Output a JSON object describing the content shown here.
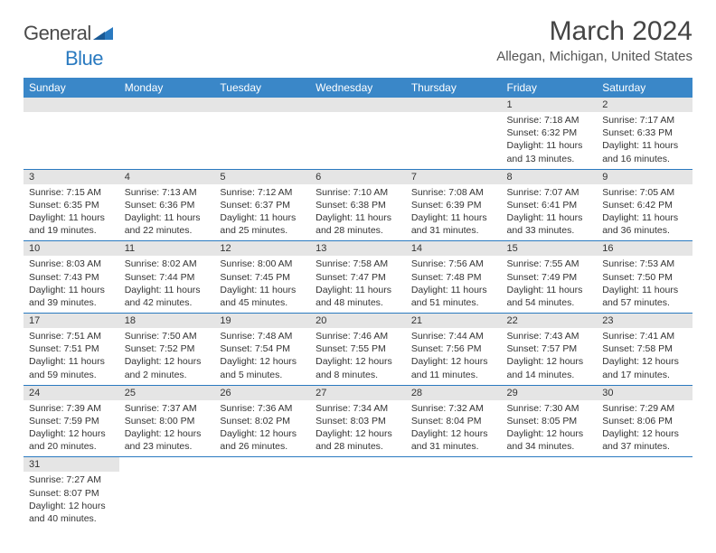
{
  "logo": {
    "general": "General",
    "blue": "Blue"
  },
  "title": "March 2024",
  "location": "Allegan, Michigan, United States",
  "colors": {
    "header_bg": "#3a87c8",
    "row_divider": "#2a7ac0",
    "daynum_bg": "#e5e5e5",
    "text": "#333333",
    "title_text": "#444444"
  },
  "daynames": [
    "Sunday",
    "Monday",
    "Tuesday",
    "Wednesday",
    "Thursday",
    "Friday",
    "Saturday"
  ],
  "weeks": [
    [
      {
        "n": "",
        "lines": [
          "",
          "",
          "",
          ""
        ]
      },
      {
        "n": "",
        "lines": [
          "",
          "",
          "",
          ""
        ]
      },
      {
        "n": "",
        "lines": [
          "",
          "",
          "",
          ""
        ]
      },
      {
        "n": "",
        "lines": [
          "",
          "",
          "",
          ""
        ]
      },
      {
        "n": "",
        "lines": [
          "",
          "",
          "",
          ""
        ]
      },
      {
        "n": "1",
        "lines": [
          "Sunrise: 7:18 AM",
          "Sunset: 6:32 PM",
          "Daylight: 11 hours",
          "and 13 minutes."
        ]
      },
      {
        "n": "2",
        "lines": [
          "Sunrise: 7:17 AM",
          "Sunset: 6:33 PM",
          "Daylight: 11 hours",
          "and 16 minutes."
        ]
      }
    ],
    [
      {
        "n": "3",
        "lines": [
          "Sunrise: 7:15 AM",
          "Sunset: 6:35 PM",
          "Daylight: 11 hours",
          "and 19 minutes."
        ]
      },
      {
        "n": "4",
        "lines": [
          "Sunrise: 7:13 AM",
          "Sunset: 6:36 PM",
          "Daylight: 11 hours",
          "and 22 minutes."
        ]
      },
      {
        "n": "5",
        "lines": [
          "Sunrise: 7:12 AM",
          "Sunset: 6:37 PM",
          "Daylight: 11 hours",
          "and 25 minutes."
        ]
      },
      {
        "n": "6",
        "lines": [
          "Sunrise: 7:10 AM",
          "Sunset: 6:38 PM",
          "Daylight: 11 hours",
          "and 28 minutes."
        ]
      },
      {
        "n": "7",
        "lines": [
          "Sunrise: 7:08 AM",
          "Sunset: 6:39 PM",
          "Daylight: 11 hours",
          "and 31 minutes."
        ]
      },
      {
        "n": "8",
        "lines": [
          "Sunrise: 7:07 AM",
          "Sunset: 6:41 PM",
          "Daylight: 11 hours",
          "and 33 minutes."
        ]
      },
      {
        "n": "9",
        "lines": [
          "Sunrise: 7:05 AM",
          "Sunset: 6:42 PM",
          "Daylight: 11 hours",
          "and 36 minutes."
        ]
      }
    ],
    [
      {
        "n": "10",
        "lines": [
          "Sunrise: 8:03 AM",
          "Sunset: 7:43 PM",
          "Daylight: 11 hours",
          "and 39 minutes."
        ]
      },
      {
        "n": "11",
        "lines": [
          "Sunrise: 8:02 AM",
          "Sunset: 7:44 PM",
          "Daylight: 11 hours",
          "and 42 minutes."
        ]
      },
      {
        "n": "12",
        "lines": [
          "Sunrise: 8:00 AM",
          "Sunset: 7:45 PM",
          "Daylight: 11 hours",
          "and 45 minutes."
        ]
      },
      {
        "n": "13",
        "lines": [
          "Sunrise: 7:58 AM",
          "Sunset: 7:47 PM",
          "Daylight: 11 hours",
          "and 48 minutes."
        ]
      },
      {
        "n": "14",
        "lines": [
          "Sunrise: 7:56 AM",
          "Sunset: 7:48 PM",
          "Daylight: 11 hours",
          "and 51 minutes."
        ]
      },
      {
        "n": "15",
        "lines": [
          "Sunrise: 7:55 AM",
          "Sunset: 7:49 PM",
          "Daylight: 11 hours",
          "and 54 minutes."
        ]
      },
      {
        "n": "16",
        "lines": [
          "Sunrise: 7:53 AM",
          "Sunset: 7:50 PM",
          "Daylight: 11 hours",
          "and 57 minutes."
        ]
      }
    ],
    [
      {
        "n": "17",
        "lines": [
          "Sunrise: 7:51 AM",
          "Sunset: 7:51 PM",
          "Daylight: 11 hours",
          "and 59 minutes."
        ]
      },
      {
        "n": "18",
        "lines": [
          "Sunrise: 7:50 AM",
          "Sunset: 7:52 PM",
          "Daylight: 12 hours",
          "and 2 minutes."
        ]
      },
      {
        "n": "19",
        "lines": [
          "Sunrise: 7:48 AM",
          "Sunset: 7:54 PM",
          "Daylight: 12 hours",
          "and 5 minutes."
        ]
      },
      {
        "n": "20",
        "lines": [
          "Sunrise: 7:46 AM",
          "Sunset: 7:55 PM",
          "Daylight: 12 hours",
          "and 8 minutes."
        ]
      },
      {
        "n": "21",
        "lines": [
          "Sunrise: 7:44 AM",
          "Sunset: 7:56 PM",
          "Daylight: 12 hours",
          "and 11 minutes."
        ]
      },
      {
        "n": "22",
        "lines": [
          "Sunrise: 7:43 AM",
          "Sunset: 7:57 PM",
          "Daylight: 12 hours",
          "and 14 minutes."
        ]
      },
      {
        "n": "23",
        "lines": [
          "Sunrise: 7:41 AM",
          "Sunset: 7:58 PM",
          "Daylight: 12 hours",
          "and 17 minutes."
        ]
      }
    ],
    [
      {
        "n": "24",
        "lines": [
          "Sunrise: 7:39 AM",
          "Sunset: 7:59 PM",
          "Daylight: 12 hours",
          "and 20 minutes."
        ]
      },
      {
        "n": "25",
        "lines": [
          "Sunrise: 7:37 AM",
          "Sunset: 8:00 PM",
          "Daylight: 12 hours",
          "and 23 minutes."
        ]
      },
      {
        "n": "26",
        "lines": [
          "Sunrise: 7:36 AM",
          "Sunset: 8:02 PM",
          "Daylight: 12 hours",
          "and 26 minutes."
        ]
      },
      {
        "n": "27",
        "lines": [
          "Sunrise: 7:34 AM",
          "Sunset: 8:03 PM",
          "Daylight: 12 hours",
          "and 28 minutes."
        ]
      },
      {
        "n": "28",
        "lines": [
          "Sunrise: 7:32 AM",
          "Sunset: 8:04 PM",
          "Daylight: 12 hours",
          "and 31 minutes."
        ]
      },
      {
        "n": "29",
        "lines": [
          "Sunrise: 7:30 AM",
          "Sunset: 8:05 PM",
          "Daylight: 12 hours",
          "and 34 minutes."
        ]
      },
      {
        "n": "30",
        "lines": [
          "Sunrise: 7:29 AM",
          "Sunset: 8:06 PM",
          "Daylight: 12 hours",
          "and 37 minutes."
        ]
      }
    ],
    [
      {
        "n": "31",
        "lines": [
          "Sunrise: 7:27 AM",
          "Sunset: 8:07 PM",
          "Daylight: 12 hours",
          "and 40 minutes."
        ]
      },
      {
        "n": "",
        "lines": [
          "",
          "",
          "",
          ""
        ]
      },
      {
        "n": "",
        "lines": [
          "",
          "",
          "",
          ""
        ]
      },
      {
        "n": "",
        "lines": [
          "",
          "",
          "",
          ""
        ]
      },
      {
        "n": "",
        "lines": [
          "",
          "",
          "",
          ""
        ]
      },
      {
        "n": "",
        "lines": [
          "",
          "",
          "",
          ""
        ]
      },
      {
        "n": "",
        "lines": [
          "",
          "",
          "",
          ""
        ]
      }
    ]
  ]
}
